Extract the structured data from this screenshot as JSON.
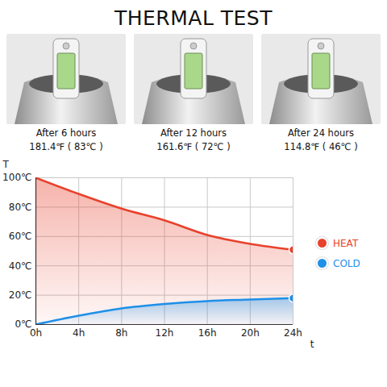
{
  "title": "THERMAL TEST",
  "photos": [
    {
      "caption": "After 6 hours",
      "reading": "181.4℉ ( 83℃ )"
    },
    {
      "caption": "After 12 hours",
      "reading": "161.6℉ ( 72℃ )"
    },
    {
      "caption": "After 24 hours",
      "reading": "114.8℉ ( 46℃ )"
    }
  ],
  "chart_data": {
    "type": "line",
    "x_label": "t",
    "y_label": "T",
    "x": [
      0,
      4,
      8,
      12,
      16,
      20,
      24
    ],
    "series": [
      {
        "name": "HEAT",
        "color": "#e8412c",
        "values": [
          100,
          89,
          79,
          71,
          61,
          55,
          51
        ]
      },
      {
        "name": "COLD",
        "color": "#1e90e8",
        "values": [
          0,
          6,
          11,
          14,
          16,
          17,
          18
        ]
      }
    ],
    "xlim": [
      0,
      24
    ],
    "xticks": [
      {
        "value": 0,
        "label": "0h"
      },
      {
        "value": 4,
        "label": "4h"
      },
      {
        "value": 8,
        "label": "8h"
      },
      {
        "value": 12,
        "label": "12h"
      },
      {
        "value": 16,
        "label": "16h"
      },
      {
        "value": 20,
        "label": "20h"
      },
      {
        "value": 24,
        "label": "24h"
      }
    ],
    "ylim": [
      0,
      100
    ],
    "yticks": [
      {
        "value": 0,
        "label": "0℃"
      },
      {
        "value": 20,
        "label": "20℃"
      },
      {
        "value": 40,
        "label": "40℃"
      },
      {
        "value": 60,
        "label": "60℃"
      },
      {
        "value": 80,
        "label": "80℃"
      },
      {
        "value": 100,
        "label": "100℃"
      }
    ],
    "grid": true,
    "legend": "right"
  }
}
